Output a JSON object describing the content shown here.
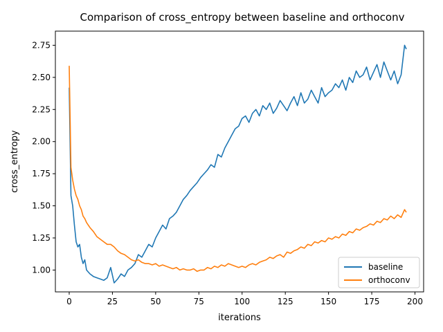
{
  "chart_data": {
    "type": "line",
    "title": "Comparison of cross_entropy between baseline and orthoconv",
    "xlabel": "iterations",
    "ylabel": "cross_entropy",
    "xlim": [
      -8,
      205
    ],
    "ylim": [
      0.83,
      2.86
    ],
    "xticks": [
      0,
      25,
      50,
      75,
      100,
      125,
      150,
      175,
      200
    ],
    "yticks": [
      1.0,
      1.25,
      1.5,
      1.75,
      2.0,
      2.25,
      2.5,
      2.75
    ],
    "ytick_labels": [
      "1.00",
      "1.25",
      "1.50",
      "1.75",
      "2.00",
      "2.25",
      "2.50",
      "2.75"
    ],
    "grid": false,
    "legend": {
      "position": "bottom-right"
    },
    "series": [
      {
        "name": "baseline",
        "color": "#1f77b4",
        "x": [
          0,
          1,
          2,
          3,
          4,
          5,
          6,
          7,
          8,
          9,
          10,
          12,
          14,
          16,
          18,
          20,
          22,
          24,
          25,
          26,
          28,
          30,
          32,
          34,
          36,
          38,
          40,
          42,
          44,
          46,
          48,
          50,
          52,
          54,
          56,
          58,
          60,
          62,
          64,
          66,
          68,
          70,
          72,
          74,
          76,
          78,
          80,
          82,
          84,
          86,
          88,
          90,
          92,
          94,
          96,
          98,
          100,
          102,
          104,
          106,
          108,
          110,
          112,
          114,
          116,
          118,
          120,
          122,
          124,
          126,
          128,
          130,
          132,
          134,
          136,
          138,
          140,
          142,
          144,
          146,
          148,
          150,
          152,
          154,
          156,
          158,
          160,
          162,
          164,
          166,
          168,
          170,
          172,
          174,
          176,
          178,
          180,
          182,
          184,
          186,
          188,
          190,
          192,
          194,
          195
        ],
        "y": [
          2.42,
          1.58,
          1.5,
          1.35,
          1.22,
          1.18,
          1.2,
          1.1,
          1.05,
          1.08,
          1.0,
          0.97,
          0.95,
          0.94,
          0.93,
          0.92,
          0.94,
          1.02,
          0.96,
          0.9,
          0.93,
          0.97,
          0.95,
          1.0,
          1.02,
          1.05,
          1.12,
          1.1,
          1.15,
          1.2,
          1.18,
          1.25,
          1.3,
          1.35,
          1.32,
          1.4,
          1.42,
          1.45,
          1.5,
          1.55,
          1.58,
          1.62,
          1.65,
          1.68,
          1.72,
          1.75,
          1.78,
          1.82,
          1.8,
          1.9,
          1.88,
          1.95,
          2.0,
          2.05,
          2.1,
          2.12,
          2.18,
          2.2,
          2.15,
          2.22,
          2.25,
          2.2,
          2.28,
          2.25,
          2.3,
          2.22,
          2.26,
          2.32,
          2.28,
          2.24,
          2.3,
          2.35,
          2.28,
          2.38,
          2.3,
          2.33,
          2.4,
          2.35,
          2.3,
          2.42,
          2.35,
          2.38,
          2.4,
          2.45,
          2.42,
          2.48,
          2.4,
          2.5,
          2.46,
          2.55,
          2.5,
          2.52,
          2.58,
          2.48,
          2.54,
          2.6,
          2.5,
          2.62,
          2.55,
          2.48,
          2.55,
          2.45,
          2.52,
          2.75,
          2.72
        ]
      },
      {
        "name": "orthoconv",
        "color": "#ff7f0e",
        "x": [
          0,
          1,
          2,
          3,
          4,
          5,
          6,
          7,
          8,
          9,
          10,
          12,
          14,
          16,
          18,
          20,
          22,
          24,
          26,
          28,
          30,
          32,
          34,
          36,
          38,
          40,
          42,
          44,
          46,
          48,
          50,
          52,
          54,
          56,
          58,
          60,
          62,
          64,
          66,
          68,
          70,
          72,
          74,
          76,
          78,
          80,
          82,
          84,
          86,
          88,
          90,
          92,
          94,
          96,
          98,
          100,
          102,
          104,
          106,
          108,
          110,
          112,
          114,
          116,
          118,
          120,
          122,
          124,
          126,
          128,
          130,
          132,
          134,
          136,
          138,
          140,
          142,
          144,
          146,
          148,
          150,
          152,
          154,
          156,
          158,
          160,
          162,
          164,
          166,
          168,
          170,
          172,
          174,
          176,
          178,
          180,
          182,
          184,
          186,
          188,
          190,
          192,
          194,
          195
        ],
        "y": [
          2.59,
          1.8,
          1.7,
          1.63,
          1.58,
          1.55,
          1.5,
          1.47,
          1.42,
          1.4,
          1.37,
          1.33,
          1.3,
          1.26,
          1.24,
          1.22,
          1.2,
          1.2,
          1.18,
          1.15,
          1.13,
          1.12,
          1.1,
          1.08,
          1.07,
          1.08,
          1.06,
          1.05,
          1.05,
          1.04,
          1.05,
          1.03,
          1.04,
          1.03,
          1.02,
          1.01,
          1.02,
          1.0,
          1.01,
          1.0,
          1.0,
          1.01,
          0.99,
          1.0,
          1.0,
          1.02,
          1.01,
          1.03,
          1.02,
          1.04,
          1.03,
          1.05,
          1.04,
          1.03,
          1.02,
          1.03,
          1.02,
          1.04,
          1.05,
          1.04,
          1.06,
          1.07,
          1.08,
          1.1,
          1.09,
          1.11,
          1.12,
          1.1,
          1.14,
          1.13,
          1.15,
          1.16,
          1.18,
          1.17,
          1.2,
          1.19,
          1.22,
          1.21,
          1.23,
          1.22,
          1.25,
          1.24,
          1.26,
          1.25,
          1.28,
          1.27,
          1.3,
          1.29,
          1.32,
          1.31,
          1.33,
          1.34,
          1.36,
          1.35,
          1.38,
          1.37,
          1.4,
          1.39,
          1.42,
          1.4,
          1.43,
          1.41,
          1.47,
          1.45
        ]
      }
    ]
  }
}
